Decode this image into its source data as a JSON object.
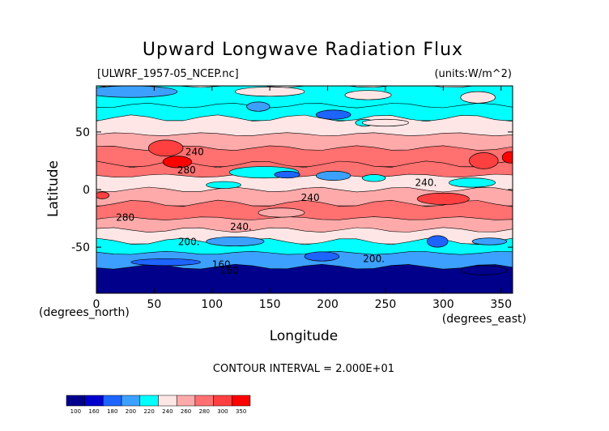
{
  "chart_data": {
    "type": "heatmap",
    "title": "Upward Longwave Radiation Flux",
    "file_label": "[ULWRF_1957-05_NCEP.nc]",
    "units_label": "(units:W/m^2)",
    "xlabel": "Longitude",
    "ylabel": "Latitude",
    "x_unit_label": "(degrees_east)",
    "y_unit_label": "(degrees_north)",
    "xlim": [
      0,
      360
    ],
    "ylim": [
      -90,
      90
    ],
    "x_ticks": [
      0,
      50,
      100,
      150,
      200,
      250,
      300,
      350
    ],
    "y_ticks": [
      -50,
      0,
      50
    ],
    "contour_interval_text": "CONTOUR INTERVAL = 2.000E+01",
    "contour_labels": [
      {
        "text": "240",
        "lon": 85,
        "lat": 30
      },
      {
        "text": "280",
        "lon": 78,
        "lat": 14
      },
      {
        "text": "280",
        "lon": 25,
        "lat": -27
      },
      {
        "text": "240",
        "lon": 185,
        "lat": -10
      },
      {
        "text": "240.",
        "lon": 125,
        "lat": -35
      },
      {
        "text": "240.",
        "lon": 285,
        "lat": 3
      },
      {
        "text": "200.",
        "lon": 80,
        "lat": -48
      },
      {
        "text": "200.",
        "lon": 240,
        "lat": -63
      },
      {
        "text": "160",
        "lon": 108,
        "lat": -68
      },
      {
        "text": "160",
        "lon": 115,
        "lat": -73
      }
    ],
    "colorbar": {
      "labels": [
        "100",
        "160",
        "180",
        "200",
        "220",
        "240",
        "260",
        "280",
        "300",
        "350"
      ],
      "colors": [
        "#00008b",
        "#0000cd",
        "#1e64ff",
        "#3ca0ff",
        "#00ffff",
        "#ffe6e6",
        "#ffaaaa",
        "#ff7070",
        "#ff4040",
        "#ff0000"
      ]
    },
    "zonal_bands": [
      {
        "lat_max": 90,
        "lat_min": 73,
        "color": "#00ffff"
      },
      {
        "lat_max": 73,
        "lat_min": 62,
        "color": "#00ffff"
      },
      {
        "lat_max": 62,
        "lat_min": 48,
        "color": "#ffe6e6"
      },
      {
        "lat_max": 48,
        "lat_min": 36,
        "color": "#ffaaaa"
      },
      {
        "lat_max": 36,
        "lat_min": 22,
        "color": "#ff7070"
      },
      {
        "lat_max": 22,
        "lat_min": 12,
        "color": "#ff7070"
      },
      {
        "lat_max": 12,
        "lat_min": 0,
        "color": "#ffe6e6"
      },
      {
        "lat_max": 0,
        "lat_min": -12,
        "color": "#ffaaaa"
      },
      {
        "lat_max": -12,
        "lat_min": -25,
        "color": "#ff7070"
      },
      {
        "lat_max": -25,
        "lat_min": -35,
        "color": "#ffaaaa"
      },
      {
        "lat_max": -35,
        "lat_min": -45,
        "color": "#ffe6e6"
      },
      {
        "lat_max": -45,
        "lat_min": -55,
        "color": "#00ffff"
      },
      {
        "lat_max": -55,
        "lat_min": -67,
        "color": "#3ca0ff"
      },
      {
        "lat_max": -67,
        "lat_min": -90,
        "color": "#00008b"
      }
    ],
    "patches": [
      {
        "lon": 30,
        "lat": 85,
        "w": 80,
        "h": 10,
        "color": "#3ca0ff"
      },
      {
        "lon": 150,
        "lat": 85,
        "w": 60,
        "h": 8,
        "color": "#ffe6e6"
      },
      {
        "lon": 235,
        "lat": 82,
        "w": 40,
        "h": 8,
        "color": "#ffe6e6"
      },
      {
        "lon": 330,
        "lat": 80,
        "w": 30,
        "h": 10,
        "color": "#ffe6e6"
      },
      {
        "lon": 140,
        "lat": 72,
        "w": 20,
        "h": 8,
        "color": "#3ca0ff"
      },
      {
        "lon": 205,
        "lat": 65,
        "w": 30,
        "h": 8,
        "color": "#1e64ff"
      },
      {
        "lon": 232,
        "lat": 58,
        "w": 16,
        "h": 6,
        "color": "#00ffff"
      },
      {
        "lon": 60,
        "lat": 36,
        "w": 30,
        "h": 14,
        "color": "#ff4040"
      },
      {
        "lon": 70,
        "lat": 24,
        "w": 25,
        "h": 10,
        "color": "#ff0000"
      },
      {
        "lon": 250,
        "lat": 58,
        "w": 40,
        "h": 6,
        "color": "#ffe6e6"
      },
      {
        "lon": 358,
        "lat": 28,
        "w": 14,
        "h": 10,
        "color": "#ff0000"
      },
      {
        "lon": 335,
        "lat": 25,
        "w": 25,
        "h": 14,
        "color": "#ff4040"
      },
      {
        "lon": 145,
        "lat": 15,
        "w": 60,
        "h": 10,
        "color": "#00ffff"
      },
      {
        "lon": 165,
        "lat": 13,
        "w": 22,
        "h": 6,
        "color": "#1e64ff"
      },
      {
        "lon": 205,
        "lat": 12,
        "w": 30,
        "h": 8,
        "color": "#3ca0ff"
      },
      {
        "lon": 240,
        "lat": 10,
        "w": 20,
        "h": 6,
        "color": "#00ffff"
      },
      {
        "lon": 110,
        "lat": 4,
        "w": 30,
        "h": 6,
        "color": "#00ffff"
      },
      {
        "lon": 325,
        "lat": 6,
        "w": 40,
        "h": 8,
        "color": "#00ffff"
      },
      {
        "lon": 5,
        "lat": -5,
        "w": 12,
        "h": 6,
        "color": "#ff4040"
      },
      {
        "lon": 300,
        "lat": -8,
        "w": 45,
        "h": 10,
        "color": "#ff4040"
      },
      {
        "lon": 160,
        "lat": -20,
        "w": 40,
        "h": 8,
        "color": "#ffaaaa"
      },
      {
        "lon": 120,
        "lat": -45,
        "w": 50,
        "h": 8,
        "color": "#3ca0ff"
      },
      {
        "lon": 295,
        "lat": -45,
        "w": 18,
        "h": 10,
        "color": "#1e64ff"
      },
      {
        "lon": 340,
        "lat": -45,
        "w": 30,
        "h": 6,
        "color": "#3ca0ff"
      },
      {
        "lon": 195,
        "lat": -58,
        "w": 30,
        "h": 8,
        "color": "#1e64ff"
      },
      {
        "lon": 60,
        "lat": -63,
        "w": 60,
        "h": 6,
        "color": "#1e64ff"
      },
      {
        "lon": 335,
        "lat": -70,
        "w": 40,
        "h": 8,
        "color": "#00008b"
      }
    ]
  }
}
